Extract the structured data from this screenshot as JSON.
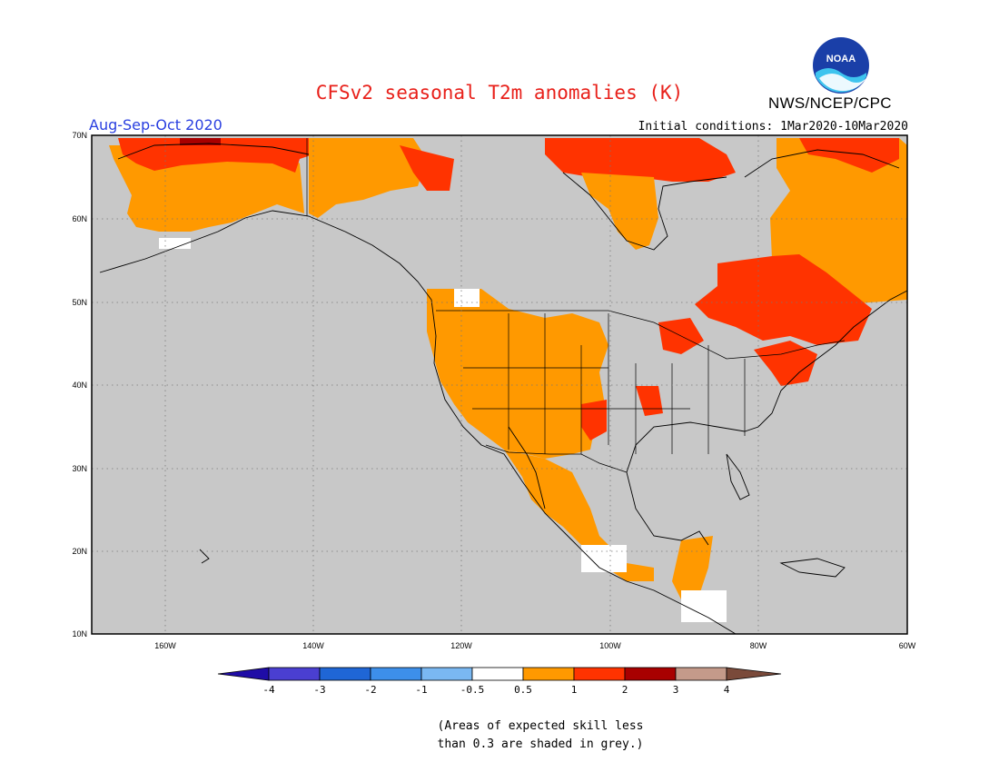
{
  "header": {
    "title": "CFSv2 seasonal T2m anomalies (K)",
    "period": "Aug-Sep-Oct 2020",
    "initial_conditions": "Initial conditions: 1Mar2020-10Mar2020",
    "organization": "NWS/NCEP/CPC",
    "logo_text": "NOAA"
  },
  "map": {
    "lat_labels": [
      "70N",
      "60N",
      "50N",
      "40N",
      "30N",
      "20N",
      "10N"
    ],
    "lon_labels": [
      "160W",
      "140W",
      "120W",
      "100W",
      "80W",
      "60W"
    ],
    "extent": {
      "lon_min": -170,
      "lon_max": -60,
      "lat_min": 10,
      "lat_max": 70
    },
    "background_color": "#c8c8c8",
    "regions": [
      {
        "name": "Alaska",
        "category": "0.5 to 1"
      },
      {
        "name": "Northern Alaska coast",
        "category": "1 to 2"
      },
      {
        "name": "Yukon / Northwest Territories coast",
        "category": "0.5 to 1"
      },
      {
        "name": "Canadian Arctic Archipelago",
        "category": "1 to 2"
      },
      {
        "name": "Hudson Bay west coast",
        "category": "0.5 to 1"
      },
      {
        "name": "Quebec and Ontario",
        "category": "1 to 2"
      },
      {
        "name": "Labrador and Baffin",
        "category": "0.5 to 1"
      },
      {
        "name": "Western United States",
        "category": "0.5 to 1"
      },
      {
        "name": "Mexico Pacific coast",
        "category": "0.5 to 1"
      },
      {
        "name": "Central America",
        "category": "0.5 to 1"
      }
    ]
  },
  "colorbar": {
    "ticks": [
      "-4",
      "-3",
      "-2",
      "-1",
      "-0.5",
      "0.5",
      "1",
      "2",
      "3",
      "4"
    ],
    "colors": [
      "#1f0ca6",
      "#4a3fd1",
      "#1f66d6",
      "#3d8fea",
      "#7ab8f2",
      "#ffffff",
      "#ff9900",
      "#ff3300",
      "#a80000",
      "#c49a8a",
      "#7a4a3a"
    ]
  },
  "note": {
    "line1": "(Areas of expected skill less",
    "line2": "than 0.3 are shaded in grey.)"
  }
}
